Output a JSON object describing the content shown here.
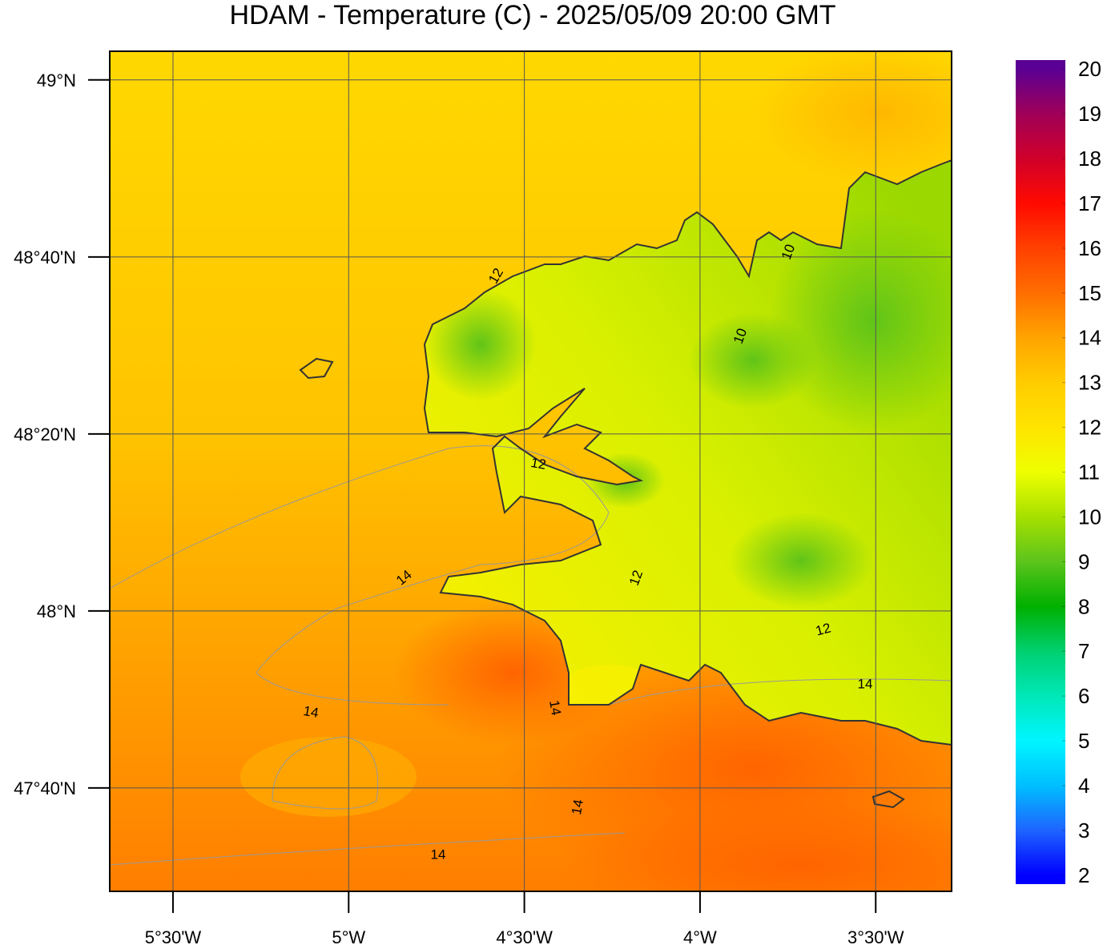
{
  "title": "HDAM - Temperature (C)  -  2025/05/09  20:00 GMT",
  "map": {
    "xlim": [
      -5.68,
      -3.284
    ],
    "ylim": [
      47.472,
      49.054
    ],
    "lat_ticks": [
      {
        "value": 49,
        "label": "49°N"
      },
      {
        "value": 48.6667,
        "label": "48°40'N"
      },
      {
        "value": 48.3333,
        "label": "48°20'N"
      },
      {
        "value": 48,
        "label": "48°N"
      },
      {
        "value": 47.6667,
        "label": "47°40'N"
      }
    ],
    "lon_ticks": [
      {
        "value": -5.5,
        "label": "5°30'W"
      },
      {
        "value": -5,
        "label": "5°W"
      },
      {
        "value": -4.5,
        "label": "4°30'W"
      },
      {
        "value": -4,
        "label": "4°W"
      },
      {
        "value": -3.5,
        "label": "3°30'W"
      }
    ],
    "grid": true
  },
  "contour_labels": [
    12,
    10,
    10,
    12,
    14,
    12,
    12,
    14,
    14,
    14,
    14,
    14
  ],
  "colorbar": {
    "lim": [
      1.8,
      20.2
    ],
    "ticks": [
      2,
      3,
      4,
      5,
      6,
      7,
      8,
      9,
      10,
      11,
      12,
      13,
      14,
      15,
      16,
      17,
      18,
      19,
      20
    ],
    "colors": [
      "#0000ff",
      "#1e64ff",
      "#00bfff",
      "#00f5ff",
      "#00e8b8",
      "#00d070",
      "#00b000",
      "#5cc41c",
      "#a6e000",
      "#eeff00",
      "#ffe400",
      "#ffcc00",
      "#ffa400",
      "#ff6e00",
      "#ff4000",
      "#ff0a00",
      "#d0002a",
      "#a00058",
      "#5a0094"
    ]
  }
}
